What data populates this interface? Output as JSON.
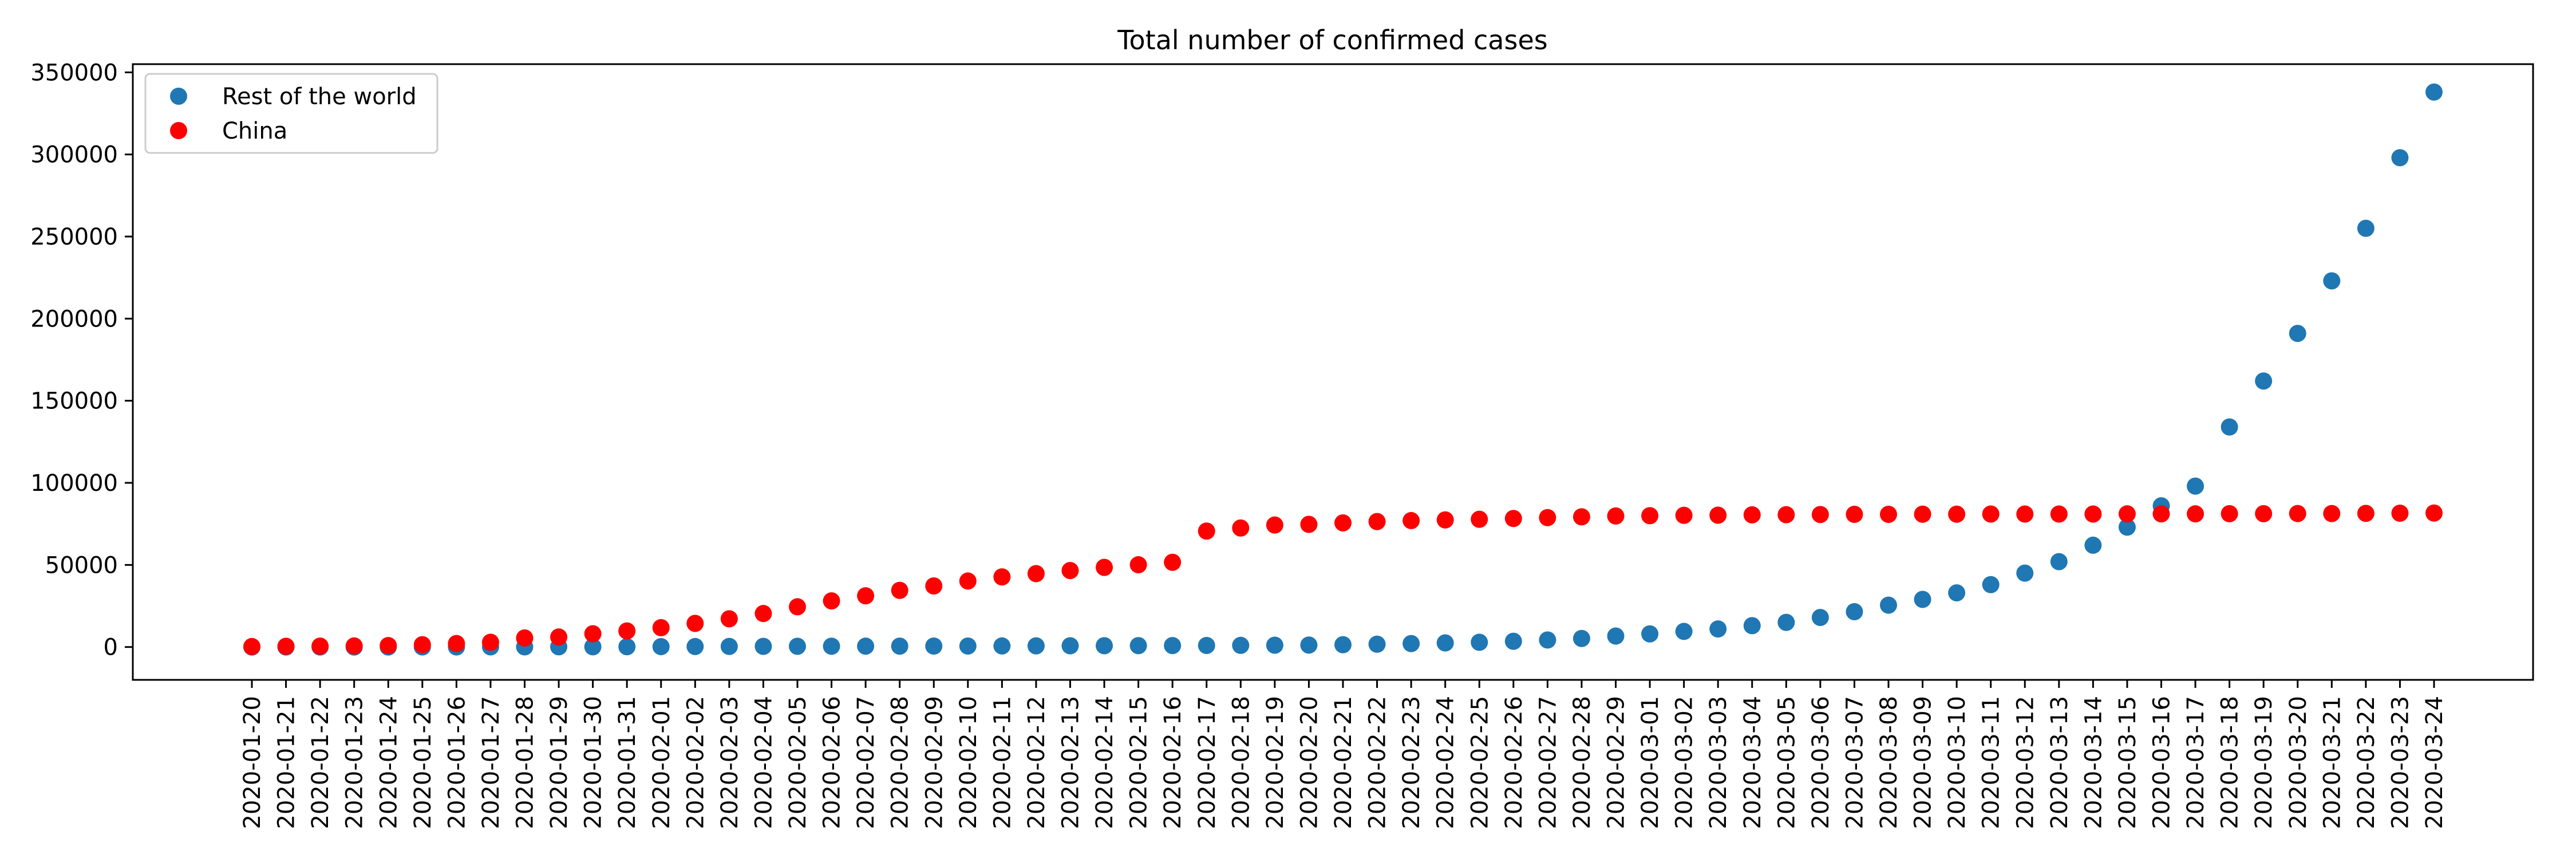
{
  "chart_data": {
    "type": "scatter",
    "title": "Total number of confirmed cases",
    "xlabel": "",
    "ylabel": "",
    "ylim": [
      -20000,
      355000
    ],
    "y_ticks": [
      0,
      50000,
      100000,
      150000,
      200000,
      250000,
      300000,
      350000
    ],
    "grid": false,
    "legend_position": "top-left",
    "x": [
      "2020-01-20",
      "2020-01-21",
      "2020-01-22",
      "2020-01-23",
      "2020-01-24",
      "2020-01-25",
      "2020-01-26",
      "2020-01-27",
      "2020-01-28",
      "2020-01-29",
      "2020-01-30",
      "2020-01-31",
      "2020-02-01",
      "2020-02-02",
      "2020-02-03",
      "2020-02-04",
      "2020-02-05",
      "2020-02-06",
      "2020-02-07",
      "2020-02-08",
      "2020-02-09",
      "2020-02-10",
      "2020-02-11",
      "2020-02-12",
      "2020-02-13",
      "2020-02-14",
      "2020-02-15",
      "2020-02-16",
      "2020-02-17",
      "2020-02-18",
      "2020-02-19",
      "2020-02-20",
      "2020-02-21",
      "2020-02-22",
      "2020-02-23",
      "2020-02-24",
      "2020-02-25",
      "2020-02-26",
      "2020-02-27",
      "2020-02-28",
      "2020-02-29",
      "2020-03-01",
      "2020-03-02",
      "2020-03-03",
      "2020-03-04",
      "2020-03-05",
      "2020-03-06",
      "2020-03-07",
      "2020-03-08",
      "2020-03-09",
      "2020-03-10",
      "2020-03-11",
      "2020-03-12",
      "2020-03-13",
      "2020-03-14",
      "2020-03-15",
      "2020-03-16",
      "2020-03-17",
      "2020-03-18",
      "2020-03-19",
      "2020-03-20",
      "2020-03-21",
      "2020-03-22",
      "2020-03-23",
      "2020-03-24"
    ],
    "series": [
      {
        "name": "Rest of the world",
        "color": "#1f77b4",
        "values": [
          0,
          5,
          10,
          15,
          30,
          40,
          60,
          80,
          100,
          130,
          160,
          200,
          250,
          300,
          350,
          400,
          450,
          500,
          520,
          550,
          580,
          600,
          650,
          700,
          750,
          800,
          850,
          900,
          950,
          1000,
          1100,
          1200,
          1400,
          1700,
          2100,
          2500,
          2900,
          3500,
          4300,
          5200,
          6700,
          8000,
          9500,
          11000,
          13000,
          15000,
          18000,
          21500,
          25500,
          29000,
          33000,
          38000,
          45000,
          52000,
          62000,
          73000,
          86000,
          98000,
          134000,
          162000,
          191000,
          223000,
          255000,
          298000,
          338000
        ]
      },
      {
        "name": "China",
        "color": "#ff0000",
        "values": [
          300,
          450,
          550,
          650,
          900,
          1400,
          2100,
          2900,
          5500,
          6100,
          8100,
          9800,
          11800,
          14400,
          17200,
          20400,
          24500,
          28100,
          31200,
          34500,
          37200,
          40200,
          42700,
          44700,
          46600,
          48500,
          50100,
          51600,
          70600,
          72500,
          74300,
          74700,
          75600,
          76400,
          77000,
          77400,
          77800,
          78300,
          78800,
          79300,
          79800,
          80000,
          80200,
          80300,
          80500,
          80600,
          80700,
          80800,
          80800,
          80900,
          80900,
          81000,
          81000,
          81000,
          81000,
          81100,
          81100,
          81100,
          81200,
          81200,
          81300,
          81300,
          81400,
          81500,
          81600
        ]
      }
    ]
  }
}
